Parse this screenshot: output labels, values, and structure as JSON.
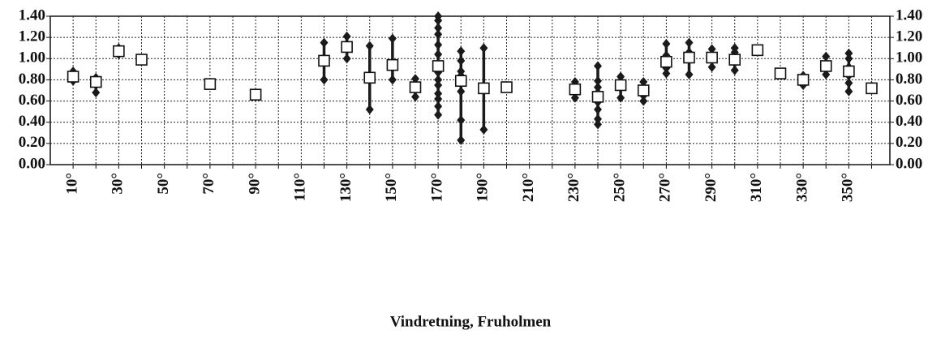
{
  "chart_data": {
    "type": "range-scatter",
    "x_label": "Vindretning, Fruholmen",
    "xlim": [
      0,
      368
    ],
    "xticks": [
      {
        "value": 10,
        "label": "10°"
      },
      {
        "value": 30,
        "label": "30°"
      },
      {
        "value": 50,
        "label": "50°"
      },
      {
        "value": 70,
        "label": "70°"
      },
      {
        "value": 90,
        "label": "90°"
      },
      {
        "value": 110,
        "label": "110°"
      },
      {
        "value": 130,
        "label": "130°"
      },
      {
        "value": 150,
        "label": "150°"
      },
      {
        "value": 170,
        "label": "170°"
      },
      {
        "value": 190,
        "label": "190°"
      },
      {
        "value": 210,
        "label": "210°"
      },
      {
        "value": 230,
        "label": "230°"
      },
      {
        "value": 250,
        "label": "250°"
      },
      {
        "value": 270,
        "label": "270°"
      },
      {
        "value": 290,
        "label": "290°"
      },
      {
        "value": 310,
        "label": "310°"
      },
      {
        "value": 330,
        "label": "330°"
      },
      {
        "value": 350,
        "label": "350°"
      }
    ],
    "x_minor_ticks": [
      20,
      40,
      60,
      80,
      100,
      120,
      140,
      160,
      180,
      200,
      220,
      240,
      260,
      280,
      300,
      320,
      340,
      360
    ],
    "ylim": [
      0,
      1.4
    ],
    "yticks": [
      {
        "value": 0,
        "label": "0.00"
      },
      {
        "value": 0.2,
        "label": "0.20"
      },
      {
        "value": 0.4,
        "label": "0.40"
      },
      {
        "value": 0.6,
        "label": "0.60"
      },
      {
        "value": 0.8,
        "label": "0.80"
      },
      {
        "value": 1.0,
        "label": "1.00"
      },
      {
        "value": 1.2,
        "label": "1.20"
      },
      {
        "value": 1.4,
        "label": "1.40"
      }
    ],
    "grid": true,
    "right_axis": true,
    "point_color": "#1a1a1a",
    "mean_color": "#ffffff",
    "groups": [
      {
        "x": 10,
        "mean": 0.83,
        "points": [
          0.88,
          0.79
        ]
      },
      {
        "x": 20,
        "mean": 0.78,
        "points": [
          0.82,
          0.68
        ]
      },
      {
        "x": 30,
        "mean": 1.07,
        "points": [
          1.1,
          1.04
        ]
      },
      {
        "x": 40,
        "mean": 0.99,
        "points": []
      },
      {
        "x": 70,
        "mean": 0.76,
        "points": []
      },
      {
        "x": 90,
        "mean": 0.66,
        "points": []
      },
      {
        "x": 120,
        "mean": 0.98,
        "points": [
          1.15,
          0.8
        ]
      },
      {
        "x": 130,
        "mean": 1.11,
        "points": [
          1.21,
          1.0
        ]
      },
      {
        "x": 140,
        "mean": 0.82,
        "points": [
          1.12,
          0.52
        ]
      },
      {
        "x": 150,
        "mean": 0.94,
        "points": [
          1.19,
          0.8
        ]
      },
      {
        "x": 160,
        "mean": 0.73,
        "points": [
          0.81,
          0.64
        ]
      },
      {
        "x": 170,
        "mean": 0.93,
        "points": [
          1.4,
          1.36,
          1.29,
          1.23,
          1.13,
          1.04,
          0.95,
          0.87,
          0.8,
          0.75,
          0.67,
          0.62,
          0.55,
          0.47
        ]
      },
      {
        "x": 180,
        "mean": 0.79,
        "points": [
          1.07,
          0.98,
          0.88,
          0.84,
          0.69,
          0.42,
          0.23
        ]
      },
      {
        "x": 190,
        "mean": 0.72,
        "points": [
          1.1,
          0.33
        ]
      },
      {
        "x": 200,
        "mean": 0.73,
        "points": []
      },
      {
        "x": 230,
        "mean": 0.71,
        "points": [
          0.78,
          0.63
        ]
      },
      {
        "x": 240,
        "mean": 0.64,
        "points": [
          0.93,
          0.79,
          0.73,
          0.68,
          0.59,
          0.52,
          0.43,
          0.38
        ]
      },
      {
        "x": 250,
        "mean": 0.75,
        "points": [
          0.83,
          0.63
        ]
      },
      {
        "x": 260,
        "mean": 0.7,
        "points": [
          0.78,
          0.65,
          0.6
        ]
      },
      {
        "x": 270,
        "mean": 0.97,
        "points": [
          1.14,
          1.03,
          0.91,
          0.86
        ]
      },
      {
        "x": 280,
        "mean": 1.01,
        "points": [
          1.15,
          1.06,
          0.85
        ]
      },
      {
        "x": 290,
        "mean": 1.01,
        "points": [
          1.09,
          0.92
        ]
      },
      {
        "x": 300,
        "mean": 0.99,
        "points": [
          1.1,
          1.06,
          0.89
        ]
      },
      {
        "x": 310,
        "mean": 1.08,
        "points": []
      },
      {
        "x": 320,
        "mean": 0.86,
        "points": []
      },
      {
        "x": 330,
        "mean": 0.8,
        "points": [
          0.84,
          0.75
        ]
      },
      {
        "x": 340,
        "mean": 0.93,
        "points": [
          1.02,
          0.85
        ]
      },
      {
        "x": 350,
        "mean": 0.88,
        "points": [
          1.05,
          1.0,
          0.92,
          0.84,
          0.77,
          0.69
        ]
      },
      {
        "x": 360,
        "mean": 0.72,
        "points": [
          0.74,
          0.71
        ]
      }
    ]
  }
}
